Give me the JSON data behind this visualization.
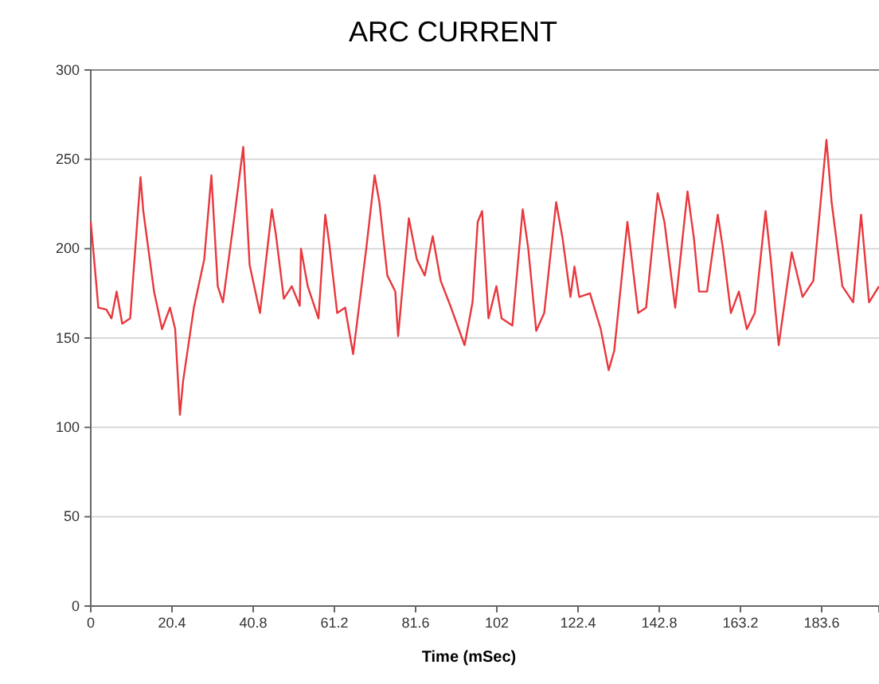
{
  "chart_data": {
    "type": "line",
    "title": "ARC CURRENT",
    "xlabel": "Time (mSec)",
    "xlim": [
      0,
      198
    ],
    "xticks": [
      0,
      20.4,
      40.8,
      61.2,
      81.6,
      102,
      122.4,
      142.8,
      163.2,
      183.6
    ],
    "ylim": [
      0,
      300
    ],
    "yticks": [
      0,
      50,
      100,
      150,
      200,
      250,
      300
    ],
    "grid": "y",
    "series": [
      {
        "color": "#e8383d",
        "x": [
          0,
          1.2,
          1.9,
          3.9,
          5.2,
          6.5,
          7.9,
          9.9,
          12.5,
          13.2,
          15.9,
          17.9,
          19.9,
          21.2,
          22.4,
          23.2,
          25.9,
          28.5,
          30.3,
          31.9,
          33.2,
          35.9,
          38.3,
          39.9,
          42.5,
          45.5,
          46.5,
          48.5,
          50.5,
          52.5,
          52.8,
          54.5,
          57.2,
          58.9,
          59.9,
          61.9,
          63.9,
          65.9,
          69.2,
          71.3,
          72.5,
          74.5,
          76.5,
          77.2,
          79.9,
          81.9,
          83.9,
          85.9,
          87.9,
          90.5,
          93.9,
          95.9,
          97.2,
          98.3,
          99.9,
          101.9,
          103.2,
          105.9,
          108.5,
          109.9,
          111.9,
          113.9,
          116.9,
          118.5,
          120.5,
          121.5,
          122.7,
          125.4,
          128.1,
          130.1,
          131.5,
          134.8,
          137.5,
          139.5,
          142.4,
          144.1,
          146.8,
          149.9,
          151.5,
          152.8,
          154.8,
          157.5,
          158.8,
          160.8,
          162.8,
          164.8,
          166.8,
          169.5,
          170.8,
          172.8,
          176.1,
          178.8,
          181.5,
          184.8,
          186.1,
          188.8,
          191.5,
          193.5,
          195.5,
          198
        ],
        "values": [
          215,
          185,
          167,
          166,
          161,
          176,
          158,
          161,
          240,
          221,
          176,
          155,
          167,
          155,
          107,
          126,
          167,
          194,
          241,
          179,
          170,
          215,
          257,
          191,
          164,
          222,
          208,
          172,
          179,
          168,
          200,
          179,
          161,
          219,
          203,
          164,
          167,
          141,
          200,
          241,
          226,
          185,
          176,
          151,
          217,
          194,
          185,
          207,
          182,
          167,
          146,
          170,
          215,
          221,
          161,
          179,
          161,
          157,
          222,
          200,
          154,
          164,
          226,
          206,
          173,
          190,
          173,
          175,
          155,
          132,
          143,
          215,
          164,
          167,
          231,
          215,
          167,
          232,
          206,
          176,
          176,
          219,
          200,
          164,
          176,
          155,
          164,
          221,
          194,
          146,
          198,
          173,
          182,
          261,
          226,
          179,
          170,
          219,
          170,
          179
        ]
      }
    ]
  }
}
